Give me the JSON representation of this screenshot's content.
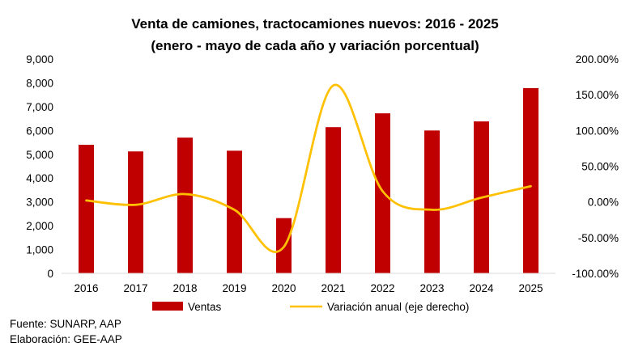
{
  "chart_data": {
    "type": "bar+line",
    "title": "Venta de camiones, tractocamiones nuevos: 2016 - 2025",
    "subtitle": "(enero - mayo de cada año y variación porcentual)",
    "categories": [
      "2016",
      "2017",
      "2018",
      "2019",
      "2020",
      "2021",
      "2022",
      "2023",
      "2024",
      "2025"
    ],
    "series": [
      {
        "name": "Ventas",
        "type": "bar",
        "axis": "left",
        "color": "#C00000",
        "values": [
          5400,
          5120,
          5700,
          5150,
          2320,
          6140,
          6720,
          6000,
          6380,
          7780
        ]
      },
      {
        "name": "Variación anual (eje derecho)",
        "type": "line",
        "axis": "right",
        "color": "#FFC000",
        "values": [
          2,
          -4,
          11,
          -11,
          -63,
          163,
          15,
          -11,
          6,
          22
        ]
      }
    ],
    "y_left": {
      "min": 0,
      "max": 9000,
      "ticks": [
        "0",
        "1,000",
        "2,000",
        "3,000",
        "4,000",
        "5,000",
        "6,000",
        "7,000",
        "8,000",
        "9,000"
      ]
    },
    "y_right": {
      "min": -100,
      "max": 200,
      "ticks": [
        "-100.00%",
        "-50.00%",
        "0.00%",
        "50.00%",
        "100.00%",
        "150.00%",
        "200.00%"
      ]
    },
    "grid": false,
    "legend": "bottom"
  },
  "footer": {
    "source": "Fuente: SUNARP, AAP",
    "prepared_by": "Elaboración: GEE-AAP"
  }
}
